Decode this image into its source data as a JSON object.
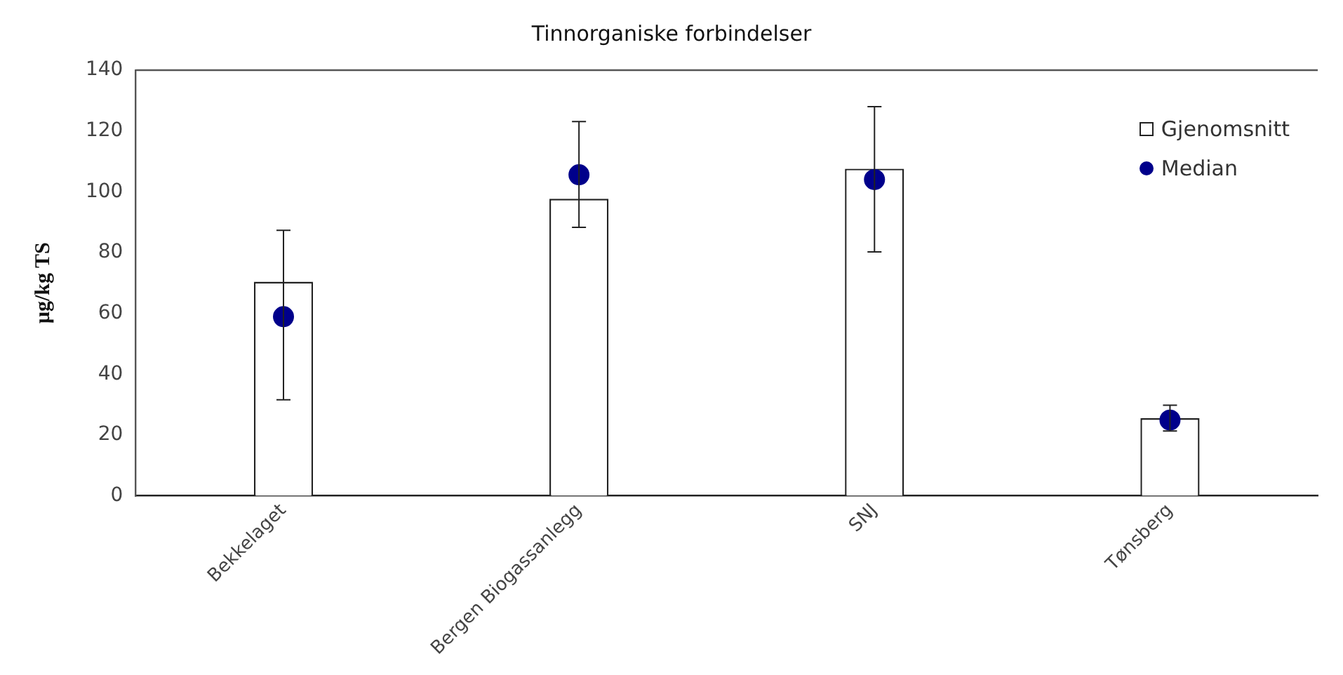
{
  "chart_data": {
    "type": "bar",
    "title": "Tinnorganiske forbindelser",
    "ylabel": "µg/kg TS",
    "categories": [
      "Bekkelaget",
      "Bergen Biogassanlegg",
      "SNJ",
      "Tønsberg"
    ],
    "series": [
      {
        "name": "Gjenomsnitt",
        "color": "#ffffff",
        "values": [
          70.4,
          97.7,
          107.6,
          25.5
        ],
        "errors": [
          [
            31.6,
            87.3
          ],
          [
            88.3,
            123.1
          ],
          [
            80.2,
            128
          ],
          [
            21.3,
            29.8
          ]
        ]
      },
      {
        "name": "Median",
        "type": "scatter",
        "color": "#00008b",
        "x": [
          "Bekkelaget",
          "Bergen Biogassanlegg",
          "SNJ",
          "Tønsberg"
        ],
        "values": [
          58.9,
          105.6,
          104,
          24.9
        ],
        "marker": "circle"
      }
    ],
    "ylim": [
      0,
      140
    ],
    "yticks": [
      0,
      20,
      40,
      60,
      80,
      100,
      120,
      140
    ],
    "grid": false,
    "legend": "top right"
  }
}
